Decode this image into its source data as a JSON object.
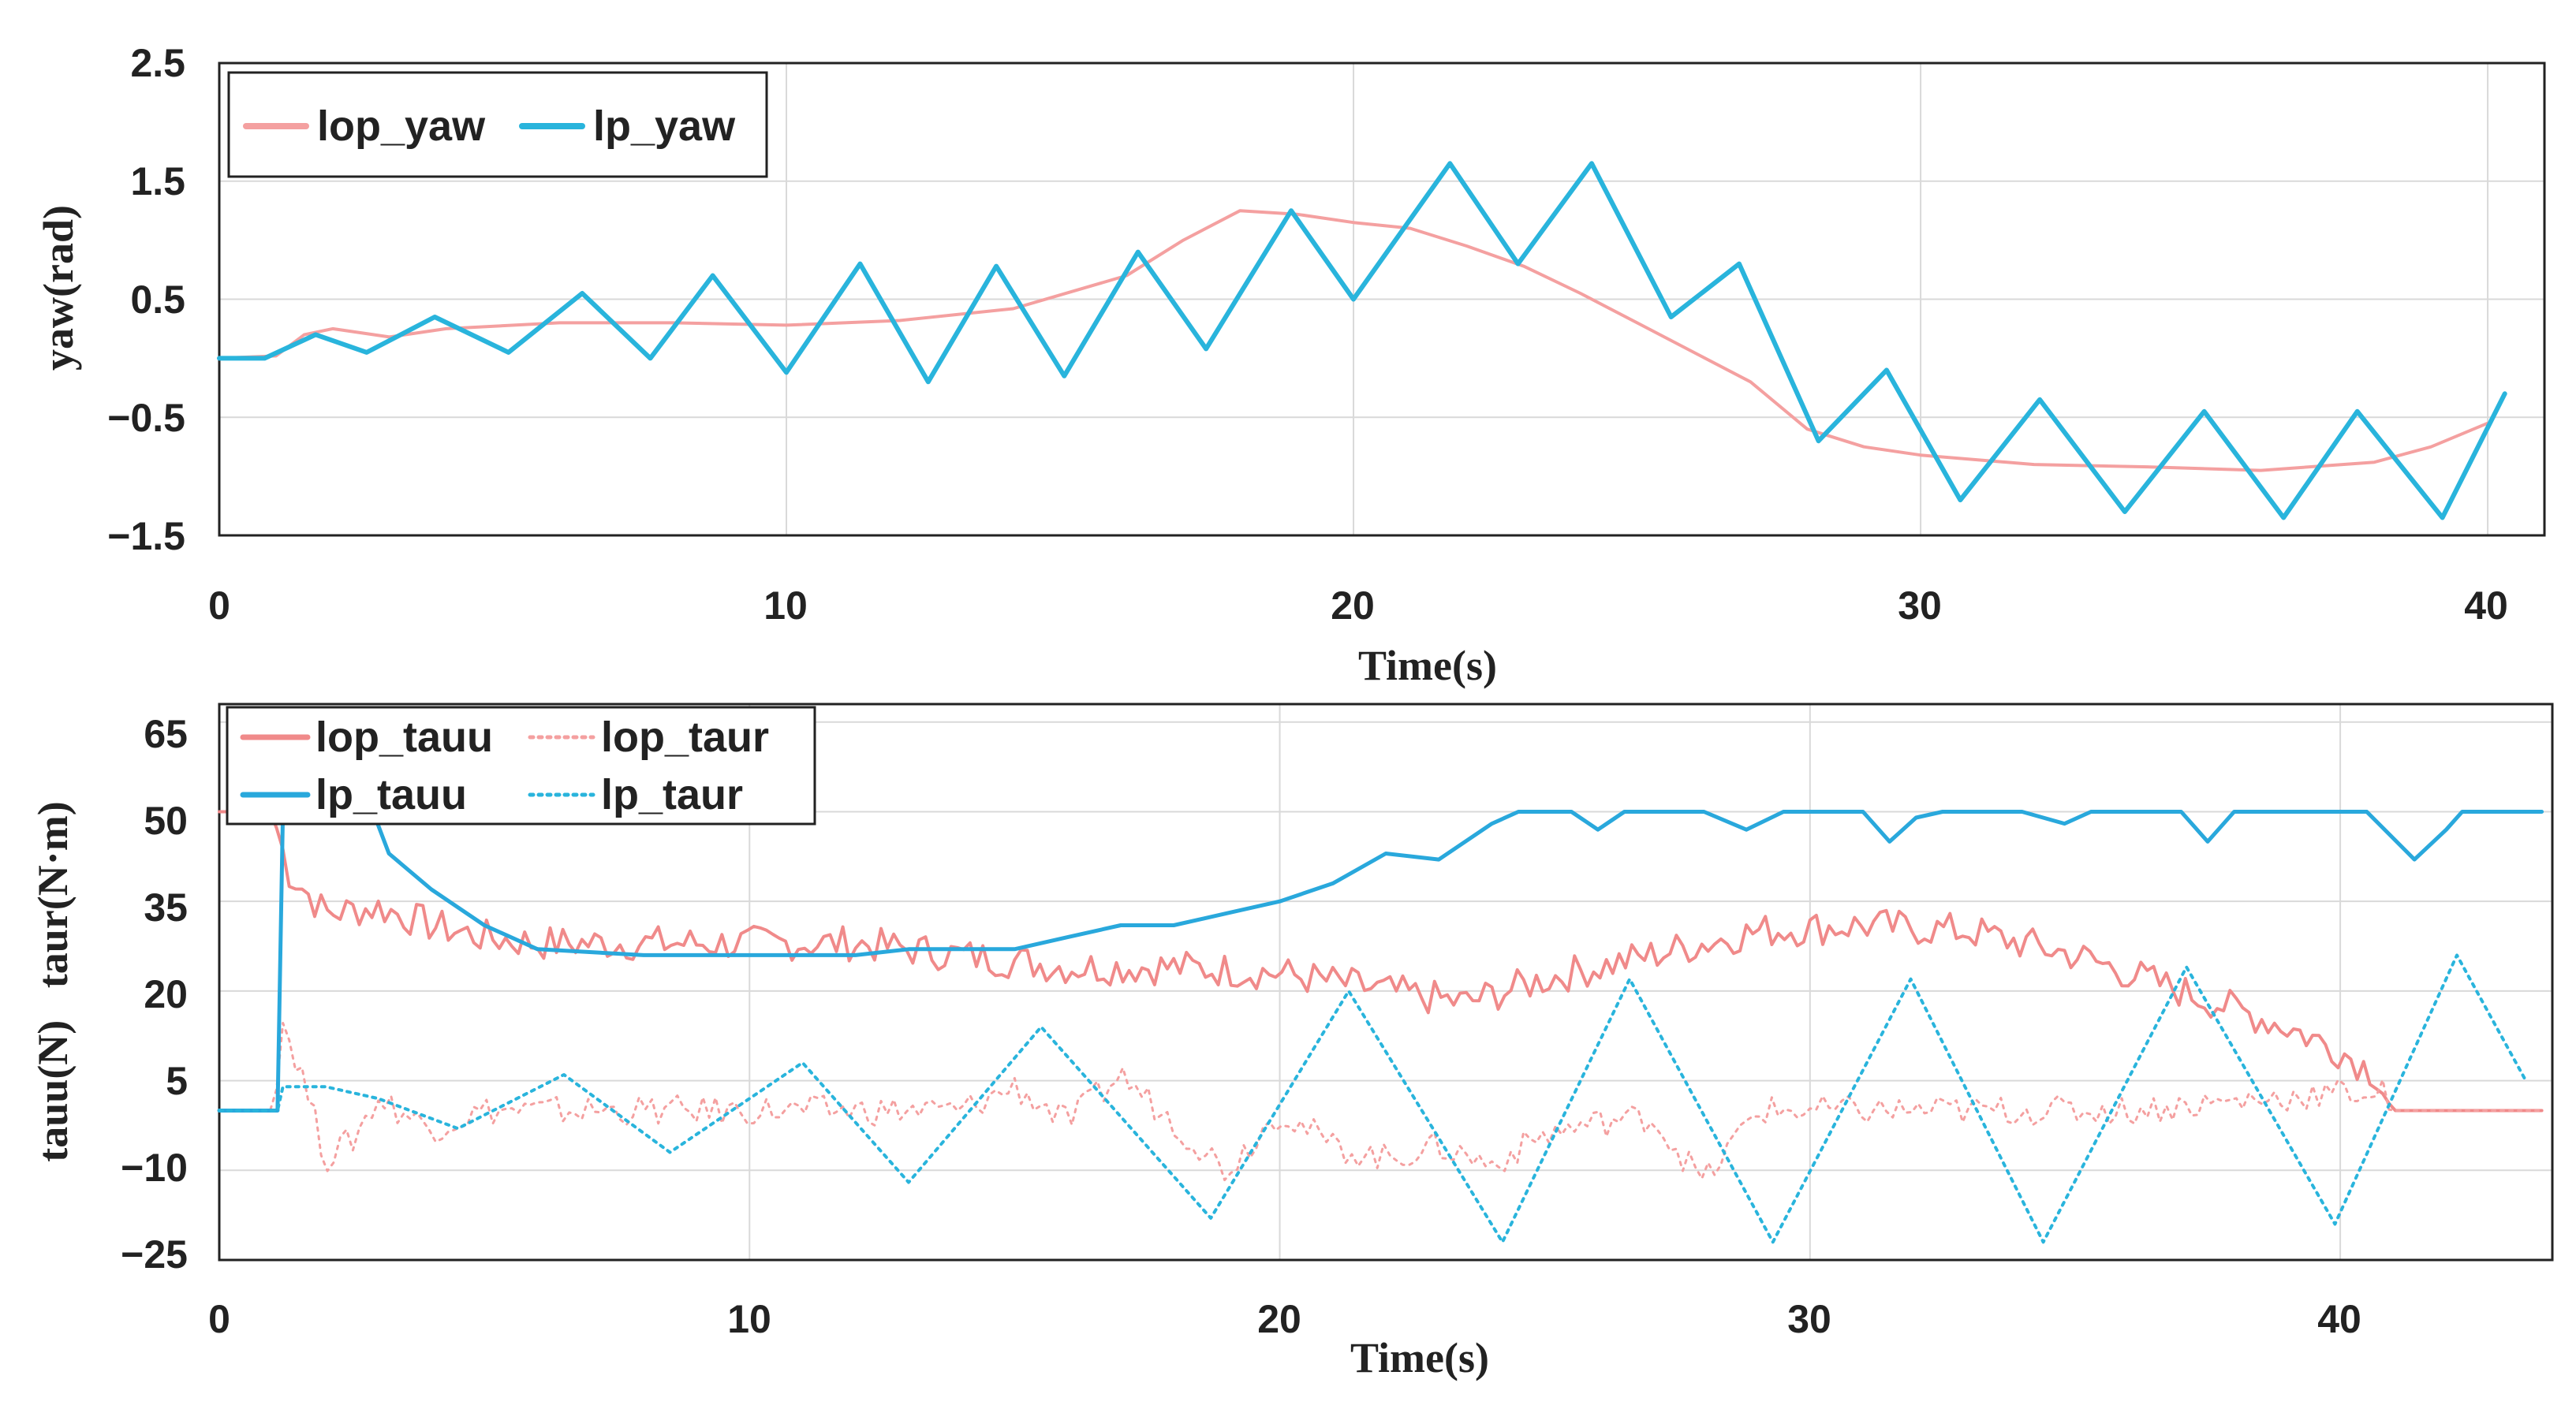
{
  "chart_data": [
    {
      "type": "line",
      "xlabel": "Time(s)",
      "ylabel": "yaw(rad)",
      "xlim": [
        0,
        41
      ],
      "ylim": [
        -1.5,
        2.5
      ],
      "xticks": [
        0,
        10,
        20,
        30,
        40
      ],
      "xtick_labels": [
        "0",
        "10",
        "20",
        "30",
        "40"
      ],
      "yticks": [
        -1.5,
        -0.5,
        0.5,
        1.5,
        2.5
      ],
      "ytick_labels": [
        "−1.5",
        "−0.5",
        "0.5",
        "1.5",
        "2.5"
      ],
      "grid": true,
      "legend_position": "top-left",
      "series": [
        {
          "name": "lop_yaw",
          "color": "#f4a0a0",
          "style": "solid",
          "points": [
            [
              0,
              0
            ],
            [
              1,
              0.02
            ],
            [
              1.5,
              0.2
            ],
            [
              2,
              0.25
            ],
            [
              3,
              0.18
            ],
            [
              4,
              0.25
            ],
            [
              6,
              0.3
            ],
            [
              8,
              0.3
            ],
            [
              10,
              0.28
            ],
            [
              12,
              0.32
            ],
            [
              14,
              0.42
            ],
            [
              16,
              0.7
            ],
            [
              17,
              1.0
            ],
            [
              18,
              1.25
            ],
            [
              19,
              1.22
            ],
            [
              20,
              1.15
            ],
            [
              21,
              1.1
            ],
            [
              22,
              0.95
            ],
            [
              23,
              0.78
            ],
            [
              24,
              0.55
            ],
            [
              25,
              0.3
            ],
            [
              26,
              0.05
            ],
            [
              27,
              -0.2
            ],
            [
              28,
              -0.6
            ],
            [
              29,
              -0.75
            ],
            [
              30,
              -0.82
            ],
            [
              32,
              -0.9
            ],
            [
              34,
              -0.92
            ],
            [
              36,
              -0.95
            ],
            [
              38,
              -0.88
            ],
            [
              39,
              -0.75
            ],
            [
              40,
              -0.55
            ]
          ]
        },
        {
          "name": "lp_yaw",
          "color": "#29b4dc",
          "style": "solid",
          "points": [
            [
              0,
              0
            ],
            [
              0.8,
              0
            ],
            [
              1.7,
              0.2
            ],
            [
              2.6,
              0.05
            ],
            [
              3.8,
              0.35
            ],
            [
              5.1,
              0.05
            ],
            [
              6.4,
              0.55
            ],
            [
              7.6,
              0.0
            ],
            [
              8.7,
              0.7
            ],
            [
              10,
              -0.12
            ],
            [
              11.3,
              0.8
            ],
            [
              12.5,
              -0.2
            ],
            [
              13.7,
              0.78
            ],
            [
              14.9,
              -0.15
            ],
            [
              16.2,
              0.9
            ],
            [
              17.4,
              0.08
            ],
            [
              18.9,
              1.25
            ],
            [
              20,
              0.5
            ],
            [
              21.7,
              1.65
            ],
            [
              22.9,
              0.8
            ],
            [
              24.2,
              1.65
            ],
            [
              25.6,
              0.35
            ],
            [
              26.8,
              0.8
            ],
            [
              28.2,
              -0.7
            ],
            [
              29.4,
              -0.1
            ],
            [
              30.7,
              -1.2
            ],
            [
              32.1,
              -0.35
            ],
            [
              33.6,
              -1.3
            ],
            [
              35,
              -0.45
            ],
            [
              36.4,
              -1.35
            ],
            [
              37.7,
              -0.45
            ],
            [
              39.2,
              -1.35
            ],
            [
              40.3,
              -0.3
            ]
          ]
        }
      ]
    },
    {
      "type": "line",
      "xlabel": "Time(s)",
      "ylabel": "tauu(N)   taur(N·m)",
      "xlim": [
        0,
        44
      ],
      "ylim": [
        -25,
        68
      ],
      "xticks": [
        0,
        10,
        20,
        30,
        40
      ],
      "xtick_labels": [
        "0",
        "10",
        "20",
        "30",
        "40"
      ],
      "yticks": [
        -25,
        -10,
        5,
        20,
        35,
        50,
        65
      ],
      "ytick_labels": [
        "−25",
        "−10",
        "5",
        "20",
        "35",
        "50",
        "65"
      ],
      "grid": true,
      "legend_position": "top-left",
      "series": [
        {
          "name": "lop_tauu",
          "color": "#f08a8a",
          "style": "solid",
          "noise": 3,
          "points": [
            [
              0,
              50
            ],
            [
              1,
              50
            ],
            [
              1.3,
              40
            ],
            [
              2,
              33
            ],
            [
              3,
              34
            ],
            [
              4,
              31
            ],
            [
              5,
              29
            ],
            [
              6,
              28
            ],
            [
              8,
              28
            ],
            [
              10,
              28
            ],
            [
              12,
              28
            ],
            [
              14,
              26
            ],
            [
              16,
              24
            ],
            [
              18,
              24
            ],
            [
              20,
              23
            ],
            [
              22,
              20
            ],
            [
              23.5,
              18
            ],
            [
              25,
              22
            ],
            [
              27,
              26
            ],
            [
              29,
              30
            ],
            [
              31,
              31
            ],
            [
              33,
              30
            ],
            [
              35,
              26
            ],
            [
              37,
              20
            ],
            [
              39,
              14
            ],
            [
              40,
              10
            ],
            [
              40.7,
              6
            ],
            [
              41,
              0
            ],
            [
              43.8,
              0
            ]
          ]
        },
        {
          "name": "lop_taur",
          "color": "#f4a0a0",
          "style": "dotted",
          "noise": 2.5,
          "points": [
            [
              0,
              0
            ],
            [
              1,
              0
            ],
            [
              1.2,
              15
            ],
            [
              1.6,
              5
            ],
            [
              2,
              -8
            ],
            [
              2.5,
              -5
            ],
            [
              3,
              2
            ],
            [
              4,
              -3
            ],
            [
              5,
              0
            ],
            [
              8,
              0
            ],
            [
              10,
              0
            ],
            [
              14,
              0
            ],
            [
              15,
              4
            ],
            [
              16,
              -2
            ],
            [
              17,
              6
            ],
            [
              18,
              -2
            ],
            [
              19,
              -10
            ],
            [
              20,
              0
            ],
            [
              21,
              -6
            ],
            [
              22,
              -8
            ],
            [
              23,
              -6
            ],
            [
              24,
              -9
            ],
            [
              25,
              -4
            ],
            [
              26,
              -2
            ],
            [
              27,
              -1
            ],
            [
              28,
              -12
            ],
            [
              29,
              0
            ],
            [
              30,
              0
            ],
            [
              32,
              0
            ],
            [
              36,
              0
            ],
            [
              40,
              3
            ],
            [
              40.8,
              3
            ],
            [
              41,
              0
            ],
            [
              43.8,
              0
            ]
          ]
        },
        {
          "name": "lp_tauu",
          "color": "#29a8dc",
          "style": "solid",
          "points": [
            [
              0,
              0
            ],
            [
              1.1,
              0
            ],
            [
              1.2,
              50
            ],
            [
              2.9,
              50
            ],
            [
              3.2,
              43
            ],
            [
              4,
              37
            ],
            [
              5,
              31
            ],
            [
              6,
              27
            ],
            [
              8,
              26
            ],
            [
              10,
              26
            ],
            [
              12,
              26
            ],
            [
              13,
              27
            ],
            [
              15,
              27
            ],
            [
              16,
              29
            ],
            [
              17,
              31
            ],
            [
              18,
              31
            ],
            [
              19,
              33
            ],
            [
              20,
              35
            ],
            [
              21,
              38
            ],
            [
              22,
              43
            ],
            [
              23,
              42
            ],
            [
              24,
              48
            ],
            [
              24.5,
              50
            ],
            [
              25.5,
              50
            ],
            [
              26,
              47
            ],
            [
              26.5,
              50
            ],
            [
              28,
              50
            ],
            [
              28.8,
              47
            ],
            [
              29.5,
              50
            ],
            [
              31,
              50
            ],
            [
              31.5,
              45
            ],
            [
              32,
              49
            ],
            [
              32.5,
              50
            ],
            [
              34,
              50
            ],
            [
              34.8,
              48
            ],
            [
              35.3,
              50
            ],
            [
              37,
              50
            ],
            [
              37.5,
              45
            ],
            [
              38,
              50
            ],
            [
              40.5,
              50
            ],
            [
              41.4,
              42
            ],
            [
              42,
              47
            ],
            [
              42.3,
              50
            ],
            [
              43.8,
              50
            ]
          ]
        },
        {
          "name": "lp_taur",
          "color": "#29b4dc",
          "style": "dotted",
          "points": [
            [
              0,
              0
            ],
            [
              1.1,
              0
            ],
            [
              1.2,
              4
            ],
            [
              2,
              4
            ],
            [
              3,
              2
            ],
            [
              4.5,
              -3
            ],
            [
              6.5,
              6
            ],
            [
              8.5,
              -7
            ],
            [
              11,
              8
            ],
            [
              13,
              -12
            ],
            [
              15.5,
              14
            ],
            [
              18.7,
              -18
            ],
            [
              21.3,
              20
            ],
            [
              24.2,
              -22
            ],
            [
              26.6,
              22
            ],
            [
              29.3,
              -22
            ],
            [
              31.9,
              22
            ],
            [
              34.4,
              -22
            ],
            [
              37.1,
              24
            ],
            [
              39.9,
              -19
            ],
            [
              42.2,
              26
            ],
            [
              43.5,
              5
            ]
          ]
        }
      ]
    }
  ]
}
